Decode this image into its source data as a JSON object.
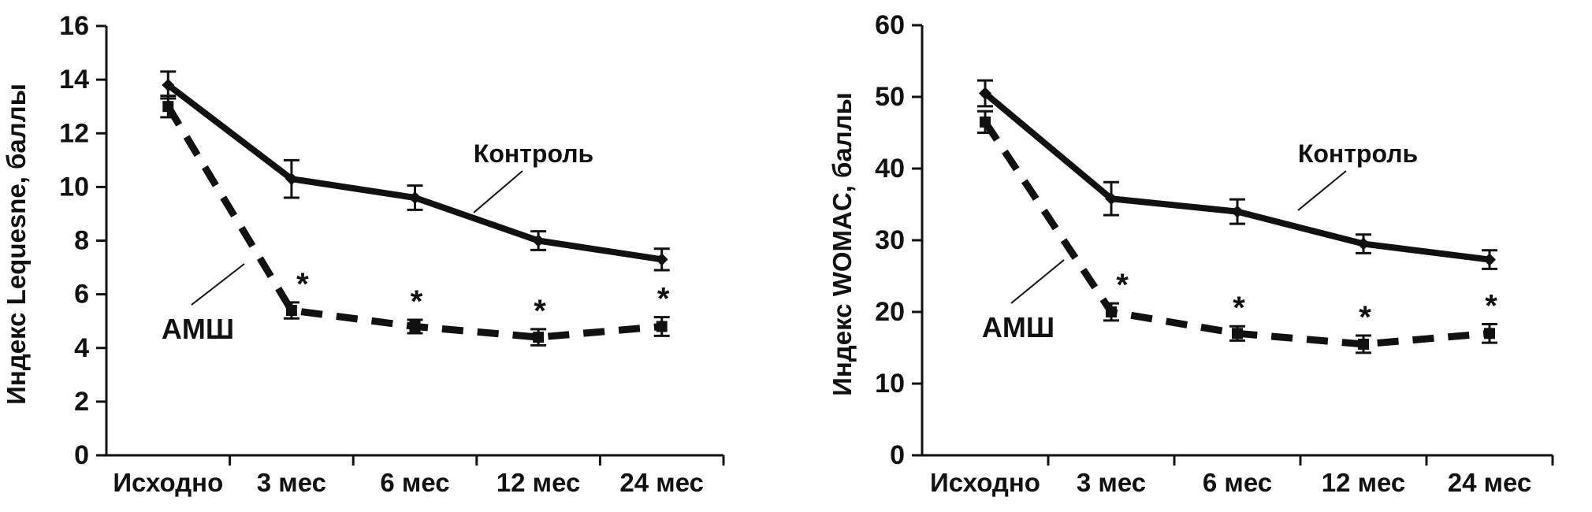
{
  "figure": {
    "description": "Two line charts comparing АМШ vs Контроль groups over 24 months",
    "significance_marker": "*"
  },
  "chart_data": [
    {
      "id": "lequesne",
      "type": "line",
      "title": "",
      "ylabel": "Индекс Lequesne, баллы",
      "xlabel": "",
      "categories": [
        "Исходно",
        "3 мес",
        "6 мес",
        "12 мес",
        "24 мес"
      ],
      "ylim": [
        0,
        16
      ],
      "ytick_step": 2,
      "yticks": [
        0,
        2,
        4,
        6,
        8,
        10,
        12,
        14,
        16
      ],
      "grid": false,
      "legend_position": "inline-annotations",
      "series": [
        {
          "name": "Контроль",
          "style": "solid",
          "marker": "diamond",
          "color": "#111111",
          "values": [
            13.8,
            10.3,
            9.6,
            8.0,
            7.3
          ],
          "errors": [
            0.5,
            0.7,
            0.45,
            0.35,
            0.4
          ],
          "significant": [
            false,
            false,
            false,
            false,
            false
          ]
        },
        {
          "name": "АМШ",
          "style": "dashed",
          "marker": "square",
          "color": "#111111",
          "values": [
            13.0,
            5.4,
            4.8,
            4.4,
            4.8
          ],
          "errors": [
            0.4,
            0.3,
            0.25,
            0.3,
            0.35
          ],
          "significant": [
            false,
            true,
            true,
            true,
            true
          ]
        }
      ]
    },
    {
      "id": "womac",
      "type": "line",
      "title": "",
      "ylabel": "Индекс WOMAC, баллы",
      "xlabel": "",
      "categories": [
        "Исходно",
        "3 мес",
        "6 мес",
        "12 мес",
        "24 мес"
      ],
      "ylim": [
        0,
        60
      ],
      "ytick_step": 10,
      "yticks": [
        0,
        10,
        20,
        30,
        40,
        50,
        60
      ],
      "grid": false,
      "legend_position": "inline-annotations",
      "series": [
        {
          "name": "Контроль",
          "style": "solid",
          "marker": "diamond",
          "color": "#111111",
          "values": [
            50.5,
            35.8,
            34.0,
            29.5,
            27.3
          ],
          "errors": [
            1.8,
            2.3,
            1.7,
            1.3,
            1.3
          ],
          "significant": [
            false,
            false,
            false,
            false,
            false
          ]
        },
        {
          "name": "АМШ",
          "style": "dashed",
          "marker": "square",
          "color": "#111111",
          "values": [
            46.5,
            20.0,
            17.0,
            15.5,
            17.0
          ],
          "errors": [
            1.5,
            1.2,
            1.0,
            1.2,
            1.3
          ],
          "significant": [
            false,
            true,
            true,
            true,
            true
          ]
        }
      ]
    }
  ]
}
